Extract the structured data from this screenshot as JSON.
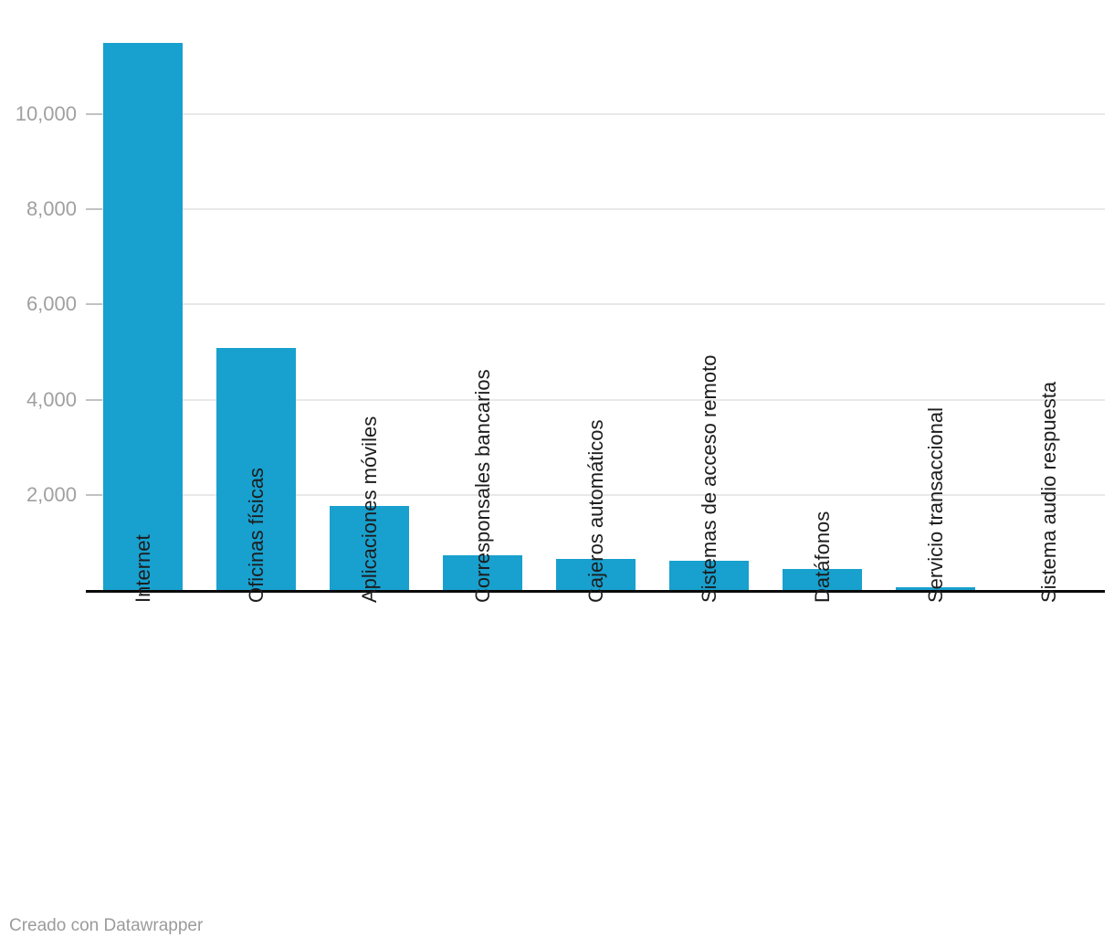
{
  "chart_data": {
    "type": "bar",
    "categories": [
      "Internet",
      "Oficinas físicas",
      "Aplicaciones móviles",
      "Corresponsales bancarios",
      "Cajeros automáticos",
      "Sistemas de acceso remoto",
      "Datáfonos",
      "Servicio transaccional",
      "Sistema audio respuesta"
    ],
    "values": [
      11500,
      5090,
      1770,
      730,
      650,
      615,
      440,
      60,
      5
    ],
    "title": "",
    "xlabel": "",
    "ylabel": "",
    "ylim": [
      0,
      12000
    ],
    "yticks": [
      2000,
      4000,
      6000,
      8000,
      10000
    ],
    "ytick_labels": [
      "2,000",
      "4,000",
      "6,000",
      "8,000",
      "10,000"
    ],
    "grid": "horizontal-only",
    "legend": "none",
    "x_label_rotation": -90
  },
  "colors": {
    "bar": "#18a0ce",
    "gridline": "#e8e8e8",
    "tick_dash": "#c2c2c2",
    "axis_line": "#0a0a0a",
    "tick_label": "#a0a0a0",
    "category_label": "#1d1d1d",
    "footer_text": "#9b9b9b",
    "background": "#ffffff"
  },
  "footer": {
    "credit": "Creado con Datawrapper"
  }
}
